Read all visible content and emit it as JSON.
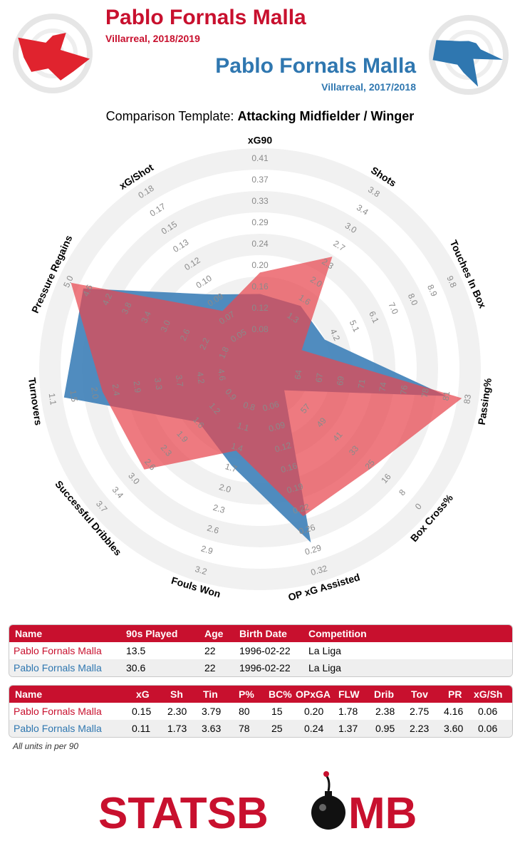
{
  "header": {
    "player1": {
      "name": "Pablo Fornals Malla",
      "season": "Villarreal, 2018/2019"
    },
    "player2": {
      "name": "Pablo Fornals Malla",
      "season": "Villarreal, 2017/2018"
    },
    "template_prefix": "Comparison Template: ",
    "template_name": "Attacking Midfielder / Winger"
  },
  "colors": {
    "player1": "#e8474f",
    "player2": "#3d80b8",
    "overlap": "#9a4e6b",
    "header_red": "#c8102e",
    "ring": "#eeeeee"
  },
  "chart_data": {
    "type": "radar",
    "axes": [
      {
        "label": "xG90",
        "ticks": [
          "0.08",
          "0.12",
          "0.16",
          "0.20",
          "0.24",
          "0.29",
          "0.33",
          "0.37",
          "0.41"
        ]
      },
      {
        "label": "Shots",
        "ticks": [
          "1.3",
          "1.6",
          "2.0",
          "2.3",
          "2.7",
          "3.0",
          "3.4",
          "3.8"
        ]
      },
      {
        "label": "Touches In Box",
        "ticks": [
          "4.2",
          "5.1",
          "6.1",
          "7.0",
          "8.0",
          "8.9",
          "9.8"
        ]
      },
      {
        "label": "Passing%",
        "ticks": [
          "64",
          "67",
          "69",
          "71",
          "74",
          "76",
          "78",
          "81",
          "83"
        ]
      },
      {
        "label": "Box Cross%",
        "ticks": [
          "57",
          "49",
          "41",
          "33",
          "25",
          "16",
          "8",
          "0"
        ]
      },
      {
        "label": "OP xG Assisted",
        "ticks": [
          "0.06",
          "0.09",
          "0.12",
          "0.16",
          "0.19",
          "0.22",
          "0.26",
          "0.29",
          "0.32"
        ]
      },
      {
        "label": "Fouls Won",
        "ticks": [
          "0.8",
          "1.1",
          "1.4",
          "1.7",
          "2.0",
          "2.3",
          "2.6",
          "2.9",
          "3.2"
        ]
      },
      {
        "label": "Successful Dribbles",
        "ticks": [
          "0.9",
          "1.2",
          "1.6",
          "1.9",
          "2.3",
          "2.6",
          "3.0",
          "3.4",
          "3.7"
        ]
      },
      {
        "label": "Turnovers",
        "ticks": [
          "4.6",
          "4.2",
          "3.7",
          "3.3",
          "2.9",
          "2.4",
          "2.0",
          "1.5",
          "1.1"
        ]
      },
      {
        "label": "Pressure Regains",
        "ticks": [
          "1.8",
          "2.2",
          "2.6",
          "3.0",
          "3.4",
          "3.8",
          "4.2",
          "4.6",
          "5.0"
        ]
      },
      {
        "label": "xG/Shot",
        "ticks": [
          "0.05",
          "0.07",
          "0.09",
          "0.10",
          "0.12",
          "0.13",
          "0.15",
          "0.17",
          "0.18"
        ]
      }
    ],
    "series": [
      {
        "name": "Pablo Fornals Malla 2018/2019",
        "radius_fraction": [
          0.4,
          0.59,
          0.14,
          0.95,
          0.67,
          0.69,
          0.34,
          0.69,
          0.72,
          0.97,
          0.26
        ]
      },
      {
        "name": "Pablo Fornals Malla 2017/2018",
        "radius_fraction": [
          0.29,
          0.29,
          0.27,
          0.87,
          0.07,
          0.83,
          0.42,
          0.32,
          0.92,
          0.9,
          0.36
        ]
      }
    ]
  },
  "table1": {
    "headers": [
      "Name",
      "90s Played",
      "Age",
      "Birth Date",
      "Competition"
    ],
    "rows": [
      [
        "Pablo Fornals Malla",
        "13.5",
        "22",
        "1996-02-22",
        "La Liga"
      ],
      [
        "Pablo Fornals Malla",
        "30.6",
        "22",
        "1996-02-22",
        "La Liga"
      ]
    ]
  },
  "table2": {
    "headers": [
      "Name",
      "xG",
      "Sh",
      "Tin",
      "P%",
      "BC%",
      "OPxGA",
      "FLW",
      "Drib",
      "Tov",
      "PR",
      "xG/Sh"
    ],
    "rows": [
      [
        "Pablo Fornals Malla",
        "0.15",
        "2.30",
        "3.79",
        "80",
        "15",
        "0.20",
        "1.78",
        "2.38",
        "2.75",
        "4.16",
        "0.06"
      ],
      [
        "Pablo Fornals Malla",
        "0.11",
        "1.73",
        "3.63",
        "78",
        "25",
        "0.24",
        "1.37",
        "0.95",
        "2.23",
        "3.60",
        "0.06"
      ]
    ]
  },
  "footer": {
    "units_note": "All units in per 90",
    "logo_text_left": "STATSB",
    "logo_text_right": "MB"
  }
}
